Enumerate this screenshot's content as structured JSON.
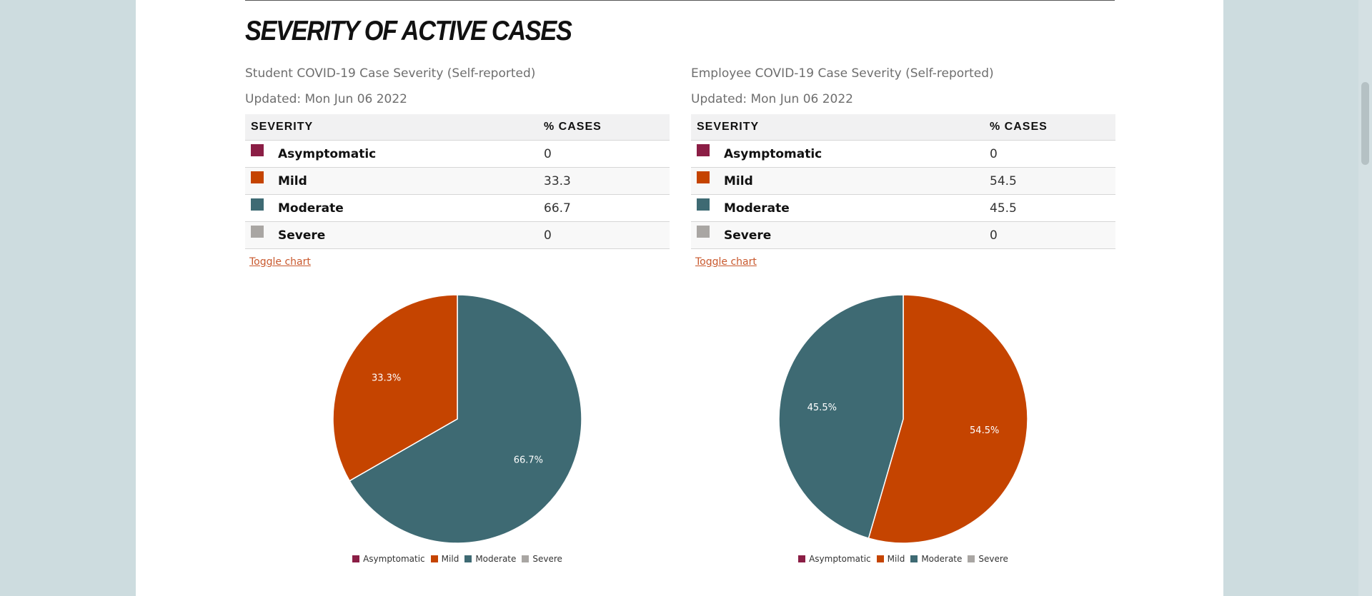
{
  "colors": {
    "asymptomatic": "#8b1e45",
    "mild": "#c54400",
    "moderate": "#3e6a73",
    "severe": "#a9a6a3"
  },
  "heading": "SEVERITY OF ACTIVE CASES",
  "student": {
    "title": "Student COVID-19 Case Severity (Self-reported)",
    "updated": "Updated: Mon Jun 06 2022",
    "table": {
      "headers": [
        "SEVERITY",
        "% CASES"
      ],
      "rows": [
        {
          "label": "Asymptomatic",
          "value": "0"
        },
        {
          "label": "Mild",
          "value": "33.3"
        },
        {
          "label": "Moderate",
          "value": "66.7"
        },
        {
          "label": "Severe",
          "value": "0"
        }
      ]
    },
    "toggle": "Toggle chart"
  },
  "employee": {
    "title": "Employee COVID-19 Case Severity (Self-reported)",
    "updated": "Updated: Mon Jun 06 2022",
    "table": {
      "headers": [
        "SEVERITY",
        "% CASES"
      ],
      "rows": [
        {
          "label": "Asymptomatic",
          "value": "0"
        },
        {
          "label": "Mild",
          "value": "54.5"
        },
        {
          "label": "Moderate",
          "value": "45.5"
        },
        {
          "label": "Severe",
          "value": "0"
        }
      ]
    },
    "toggle": "Toggle chart"
  },
  "chart_data": [
    {
      "type": "pie",
      "labels": [
        "Asymptomatic",
        "Mild",
        "Moderate",
        "Severe"
      ],
      "values": [
        0,
        33.3,
        66.7,
        0
      ],
      "data_labels": [
        "",
        "33.3%",
        "66.7%",
        ""
      ],
      "legend_position": "bottom"
    },
    {
      "type": "pie",
      "labels": [
        "Asymptomatic",
        "Mild",
        "Moderate",
        "Severe"
      ],
      "values": [
        0,
        54.5,
        45.5,
        0
      ],
      "data_labels": [
        "",
        "54.5%",
        "45.5%",
        ""
      ],
      "legend_position": "bottom"
    }
  ]
}
